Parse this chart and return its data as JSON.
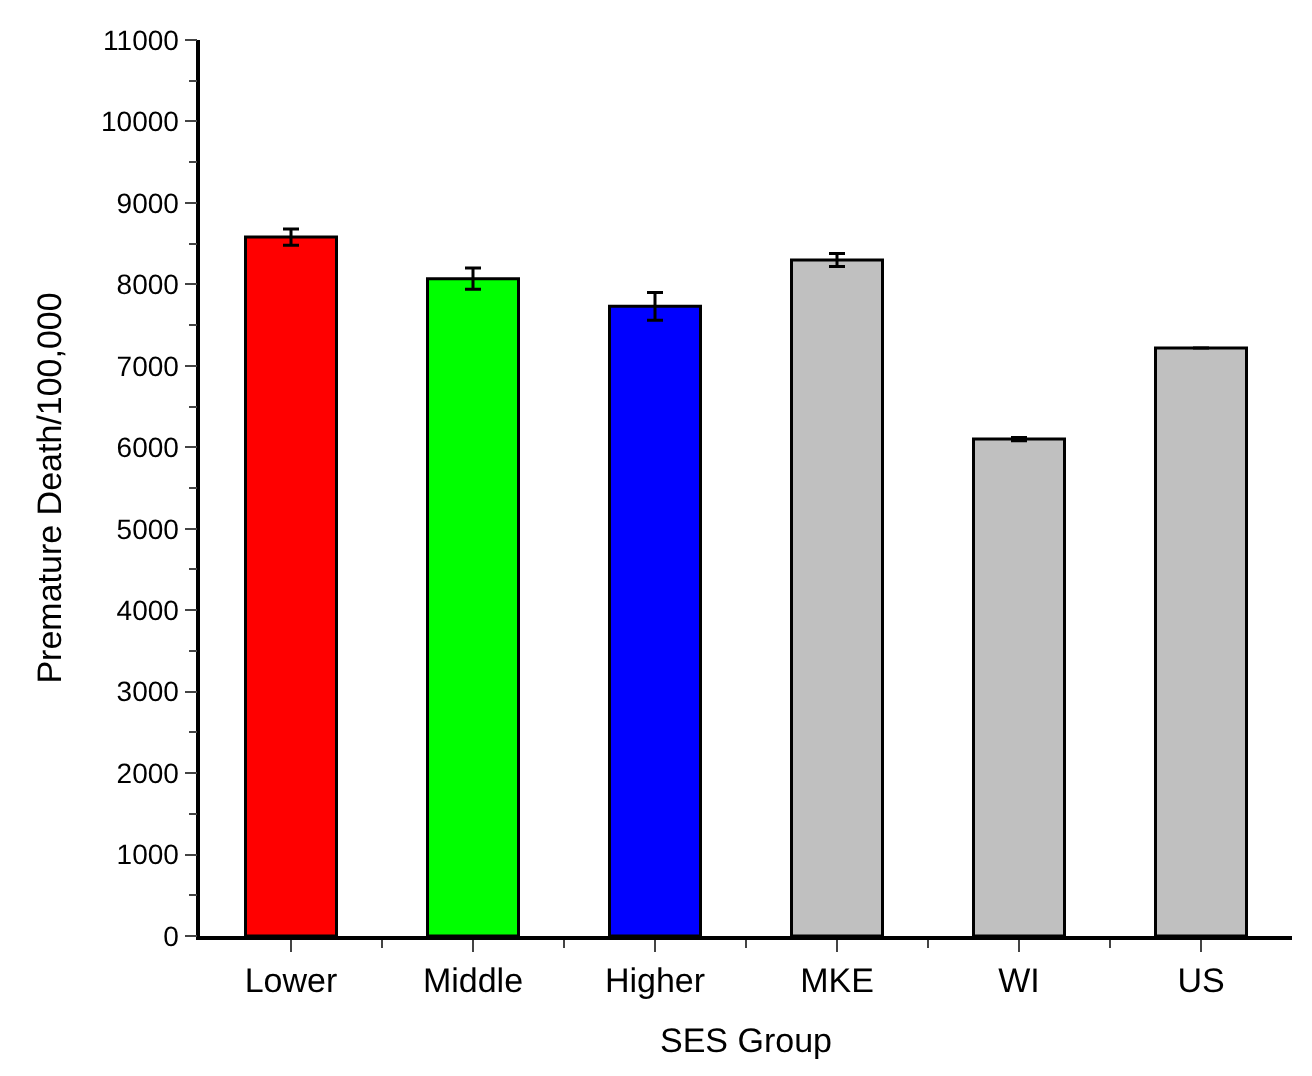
{
  "chart_data": {
    "type": "bar",
    "xlabel": "SES Group",
    "ylabel": "Premature Death/100,000",
    "categories": [
      "Lower",
      "Middle",
      "Higher",
      "MKE",
      "WI",
      "US"
    ],
    "values": [
      8580,
      8070,
      7730,
      8300,
      6100,
      7220
    ],
    "errors": [
      100,
      130,
      170,
      80,
      20,
      null
    ],
    "colors": [
      "#ff0000",
      "#00ff00",
      "#0000ff",
      "#c0c0c0",
      "#c0c0c0",
      "#c0c0c0"
    ],
    "ylim": [
      0,
      11000
    ],
    "yticks": [
      0,
      1000,
      2000,
      3000,
      4000,
      5000,
      6000,
      7000,
      8000,
      9000,
      10000,
      11000
    ],
    "legend": false
  }
}
